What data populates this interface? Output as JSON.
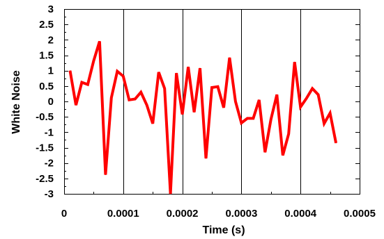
{
  "chart_data": {
    "type": "line",
    "title": "",
    "xlabel": "Time (s)",
    "ylabel": "White Noise",
    "xlim": [
      0,
      0.0005
    ],
    "ylim": [
      -3,
      3
    ],
    "x_ticks": [
      0,
      0.0001,
      0.0002,
      0.0003,
      0.0004,
      0.0005
    ],
    "x_tick_labels": [
      "0",
      "0.0001",
      "0.0002",
      "0.0003",
      "0.0004",
      "0.0005"
    ],
    "y_ticks": [
      -3,
      -2.5,
      -2,
      -1.5,
      -1,
      -0.5,
      0,
      0.5,
      1,
      1.5,
      2,
      2.5,
      3
    ],
    "y_tick_labels": [
      "-3",
      "-2.5",
      "-2",
      "-1.5",
      "-1",
      "-0.5",
      "0",
      "0.5",
      "1",
      "1.5",
      "2",
      "2.5",
      "3"
    ],
    "grid": "vertical",
    "series": [
      {
        "color": "#ff0000",
        "x": [
          1e-05,
          2e-05,
          3e-05,
          4e-05,
          5e-05,
          6e-05,
          7e-05,
          8e-05,
          9e-05,
          0.0001,
          0.00011,
          0.00012,
          0.00013,
          0.00014,
          0.00015,
          0.00016,
          0.00017,
          0.00018,
          0.00019,
          0.0002,
          0.00021,
          0.00022,
          0.00023,
          0.00024,
          0.00025,
          0.00026,
          0.00027,
          0.00028,
          0.00029,
          0.0003,
          0.00031,
          0.00032,
          0.00033,
          0.00034,
          0.00035,
          0.00036,
          0.00037,
          0.00038,
          0.00039,
          0.0004,
          0.00041,
          0.00042,
          0.00043,
          0.00044,
          0.00045,
          0.00046
        ],
        "y": [
          1.0,
          -0.12,
          0.62,
          0.55,
          1.32,
          1.95,
          -2.38,
          0.12,
          0.98,
          0.82,
          0.05,
          0.08,
          0.3,
          -0.12,
          -0.72,
          0.95,
          0.42,
          -3.0,
          0.92,
          -0.42,
          1.12,
          -0.35,
          1.08,
          -1.85,
          0.45,
          0.48,
          -0.2,
          1.42,
          0.0,
          -0.7,
          -0.55,
          -0.55,
          0.05,
          -1.65,
          -0.58,
          0.22,
          -1.75,
          -1.05,
          1.28,
          -0.18,
          0.1,
          0.42,
          0.22,
          -0.72,
          -0.38,
          -1.35
        ]
      }
    ]
  }
}
